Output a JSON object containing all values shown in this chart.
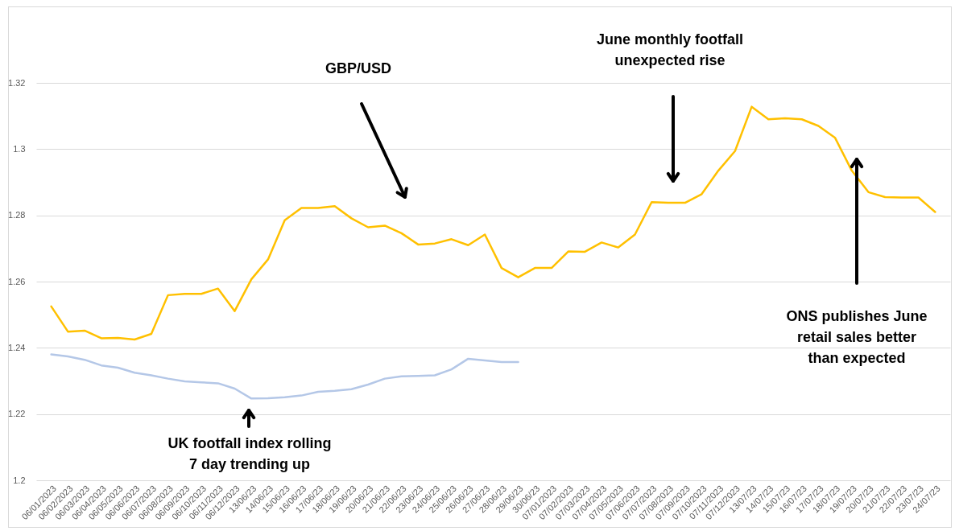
{
  "chart_data": {
    "type": "line",
    "categories": [
      "06/01/2023",
      "06/02/2023",
      "06/03/2023",
      "06/04/2023",
      "06/05/2023",
      "06/06/2023",
      "06/07/2023",
      "06/08/2023",
      "06/09/2023",
      "06/10/2023",
      "06/11/2023",
      "06/12/2023",
      "13/06/23",
      "14/06/23",
      "15/06/23",
      "16/06/23",
      "17/06/23",
      "18/06/23",
      "19/06/23",
      "20/06/23",
      "21/06/23",
      "22/06/23",
      "23/06/23",
      "24/06/23",
      "25/06/23",
      "26/06/23",
      "27/06/23",
      "28/06/23",
      "29/06/23",
      "30/06/23",
      "07/01/2023",
      "07/02/2023",
      "07/03/2023",
      "07/04/2023",
      "07/05/2023",
      "07/06/2023",
      "07/07/2023",
      "07/08/2023",
      "07/09/2023",
      "07/10/2023",
      "07/11/2023",
      "07/12/2023",
      "13/07/23",
      "14/07/23",
      "15/07/23",
      "16/07/23",
      "17/07/23",
      "18/07/23",
      "19/07/23",
      "20/07/23",
      "21/07/23",
      "22/07/23",
      "23/07/23",
      "24/07/23"
    ],
    "series": [
      {
        "color": "#ffc000",
        "values": [
          1.2525,
          1.2449,
          1.2452,
          1.2429,
          1.243,
          1.2425,
          1.2442,
          1.2559,
          1.2563,
          1.2563,
          1.2579,
          1.2511,
          1.2607,
          1.2667,
          1.2785,
          1.2822,
          1.2822,
          1.2828,
          1.2791,
          1.2764,
          1.2769,
          1.2746,
          1.2712,
          1.2715,
          1.2728,
          1.271,
          1.2742,
          1.2641,
          1.2613,
          1.2641,
          1.2641,
          1.2691,
          1.269,
          1.2718,
          1.2703,
          1.2742,
          1.284,
          1.2838,
          1.2838,
          1.2864,
          1.2935,
          1.2994,
          1.3128,
          1.309,
          1.3093,
          1.309,
          1.307,
          1.3034,
          1.2935,
          1.287,
          1.2855,
          1.2854,
          1.2854,
          1.281
        ]
      },
      {
        "color": "#b4c7e7",
        "values": [
          1.238,
          1.2374,
          1.2364,
          1.2347,
          1.234,
          1.2325,
          1.2317,
          1.2307,
          1.2299,
          1.2296,
          1.2293,
          1.2277,
          1.2247,
          1.2248,
          1.2251,
          1.2256,
          1.2267,
          1.227,
          1.2275,
          1.2289,
          1.2307,
          1.2314,
          1.2315,
          1.2317,
          1.2335,
          1.2367,
          1.2362,
          1.2357,
          1.2357,
          null,
          null,
          null,
          null,
          null,
          null,
          null,
          null,
          null,
          null,
          null,
          null,
          null,
          null,
          null,
          null,
          null,
          null,
          null,
          null,
          null,
          null,
          null,
          null,
          null
        ]
      }
    ],
    "ylim": [
      1.2,
      1.32
    ],
    "yticks": [
      1.2,
      1.22,
      1.24,
      1.26,
      1.28,
      1.3,
      1.32
    ],
    "grid": "y",
    "annotations": [
      "GBP/USD",
      "June monthly footfall unexpected rise",
      "ONS publishes June retail sales better than expected",
      "UK footfall index rolling 7 day trending up"
    ]
  }
}
